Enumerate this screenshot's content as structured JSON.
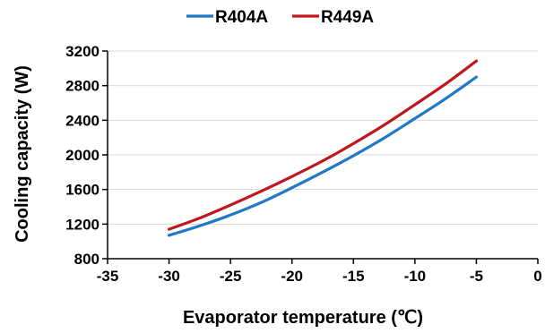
{
  "chart_data": {
    "type": "line",
    "title": "",
    "xlabel": "Evaporator temperature (℃)",
    "ylabel": "Cooling capacity (W)",
    "xlim": [
      -35,
      0
    ],
    "ylim": [
      800,
      3200
    ],
    "xticks": [
      -35,
      -30,
      -25,
      -20,
      -15,
      -10,
      -5,
      0
    ],
    "yticks": [
      800,
      1200,
      1600,
      2000,
      2400,
      2800,
      3200
    ],
    "grid": "horizontal",
    "legend_position": "top",
    "series": [
      {
        "name": "R404A",
        "color": "#1f78c8",
        "x": [
          -30,
          -27.5,
          -25,
          -22.5,
          -20,
          -17.5,
          -15,
          -12.5,
          -10,
          -7.5,
          -5
        ],
        "y": [
          1070,
          1180,
          1305,
          1450,
          1620,
          1800,
          1990,
          2195,
          2420,
          2650,
          2900
        ]
      },
      {
        "name": "R449A",
        "color": "#c0171d",
        "x": [
          -30,
          -27.5,
          -25,
          -22.5,
          -20,
          -17.5,
          -15,
          -12.5,
          -10,
          -7.5,
          -5
        ],
        "y": [
          1140,
          1270,
          1420,
          1580,
          1750,
          1930,
          2130,
          2345,
          2580,
          2820,
          3085
        ]
      }
    ]
  }
}
